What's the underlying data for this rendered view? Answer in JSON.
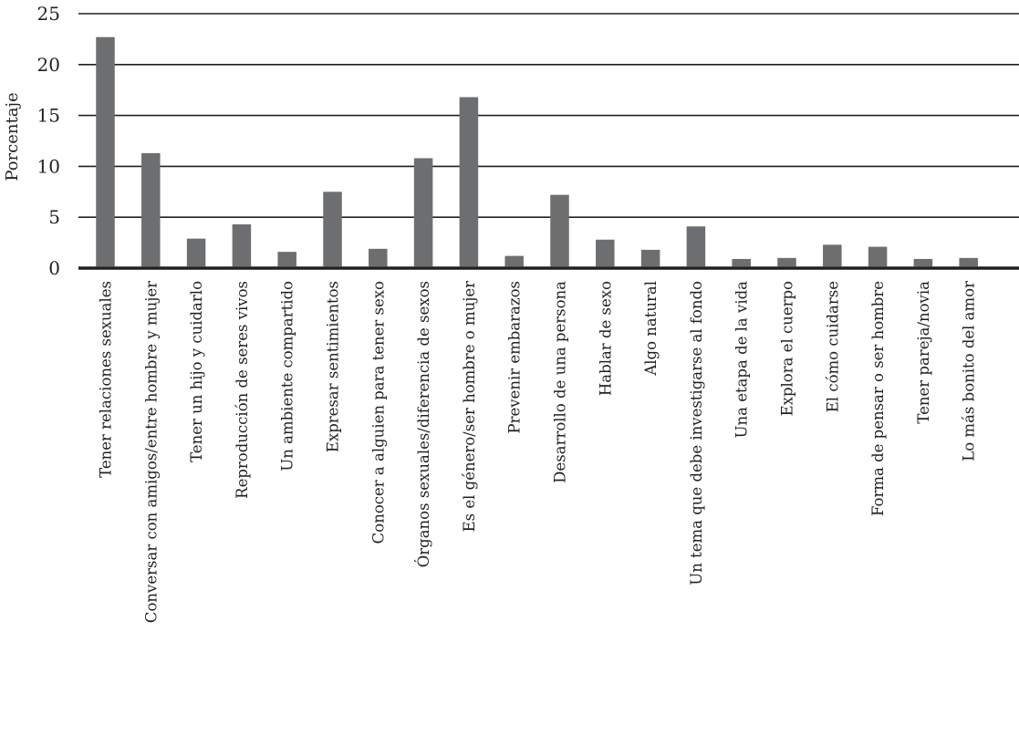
{
  "chart_data": {
    "type": "bar",
    "title": "",
    "xlabel": "",
    "ylabel": "Porcentaje",
    "ylim": [
      0,
      25
    ],
    "yticks": [
      0,
      5,
      10,
      15,
      20,
      25
    ],
    "grid": true,
    "bar_color": "#6d6e70",
    "categories": [
      "Tener relaciones sexuales",
      "Conversar con amigos/entre hombre y mujer",
      "Tener un hijo y cuidarlo",
      "Reproducción de seres vivos",
      "Un ambiente compartido",
      "Expresar sentimientos",
      "Conocer a alguien para tener sexo",
      "Órganos sexuales/diferencia de sexos",
      "Es el género/ser hombre o mujer",
      "Prevenir embarazos",
      "Desarrollo de una persona",
      "Hablar de sexo",
      "Algo natural",
      "Un tema que debe investigarse al fondo",
      "Una etapa de la vida",
      "Explora el cuerpo",
      "El cómo cuidarse",
      "Forma de pensar o ser hombre",
      "Tener pareja/novia",
      "Lo más bonito del amor"
    ],
    "values": [
      22.7,
      11.3,
      2.9,
      4.3,
      1.6,
      7.5,
      1.9,
      10.8,
      16.8,
      1.2,
      7.2,
      2.8,
      1.8,
      4.1,
      0.9,
      1.0,
      2.3,
      2.1,
      0.9,
      1.0
    ]
  }
}
